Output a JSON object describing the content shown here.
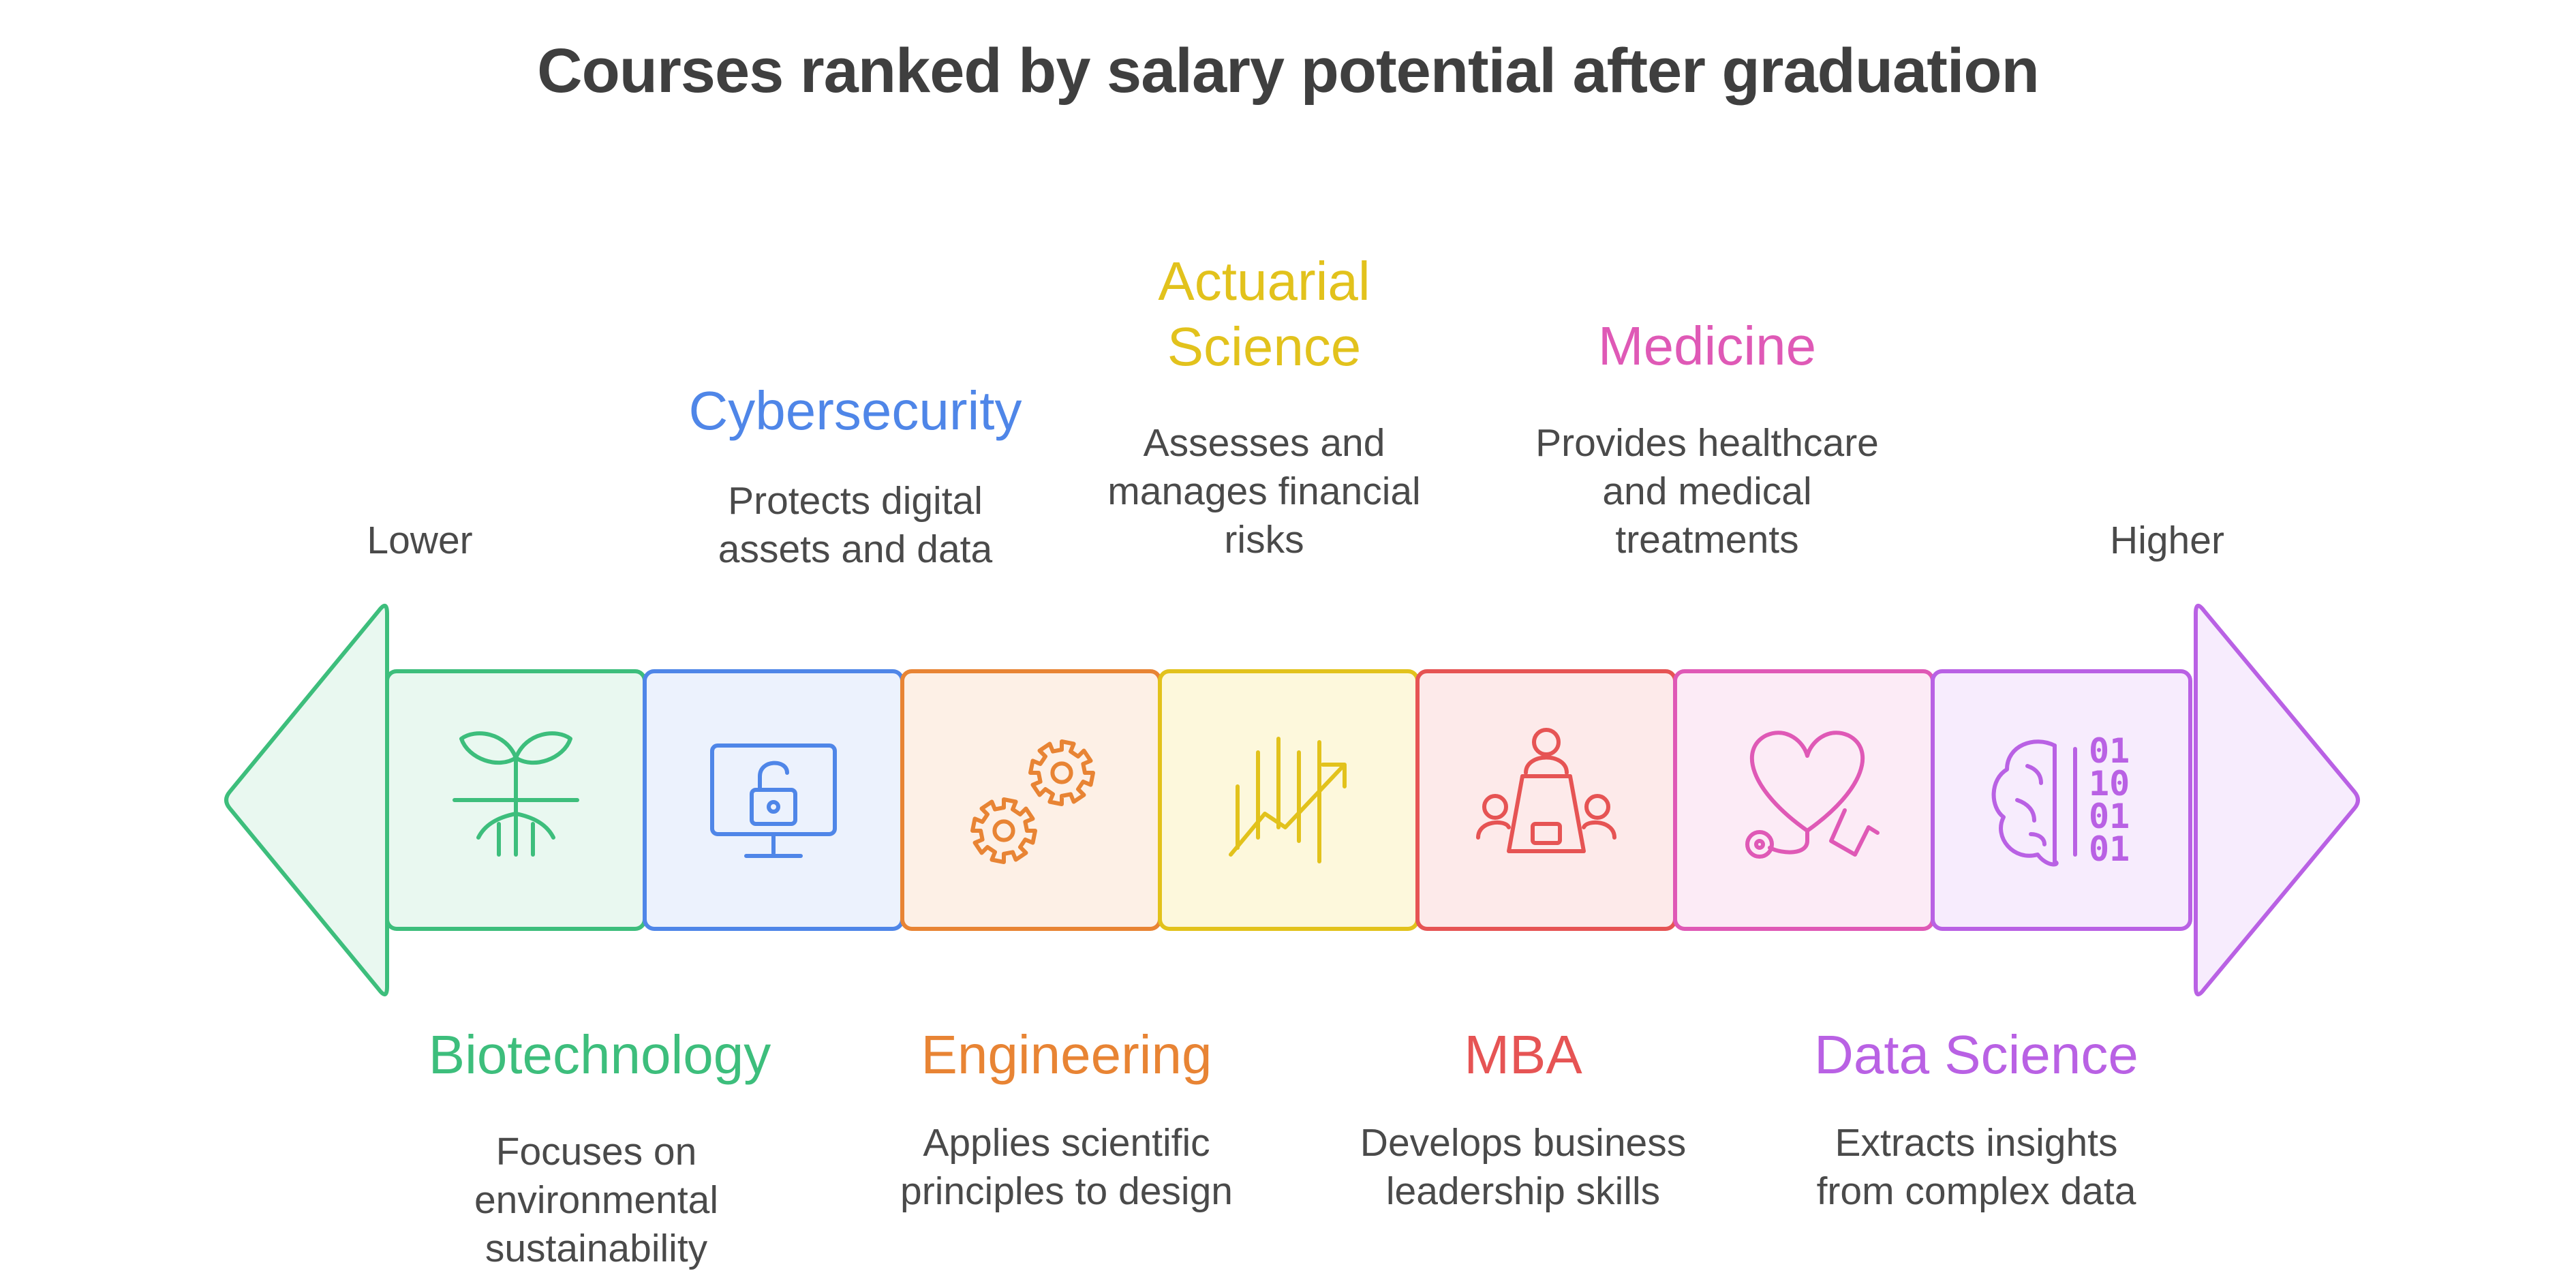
{
  "title": "Courses ranked by salary potential after graduation",
  "scale": {
    "low": "Lower",
    "high": "Higher"
  },
  "courses": [
    {
      "name": "Biotechnology",
      "desc": "Focuses on environmental sustainability",
      "color": "#3dbe7c",
      "fill": "#e9f8f0",
      "icon": "plant-icon"
    },
    {
      "name": "Cybersecurity",
      "desc": "Protects digital assets and data",
      "color": "#4f86e8",
      "fill": "#ecf2fd",
      "icon": "monitor-lock-icon"
    },
    {
      "name": "Engineering",
      "desc": "Applies scientific principles to design",
      "color": "#e88434",
      "fill": "#fdf0e6",
      "icon": "gears-icon"
    },
    {
      "name": "Actuarial Science",
      "desc": "Assesses and manages financial risks",
      "color": "#e2c21c",
      "fill": "#fdf8dc",
      "icon": "trend-chart-icon"
    },
    {
      "name": "MBA",
      "desc": "Develops business leadership skills",
      "color": "#e65454",
      "fill": "#fdeaea",
      "icon": "meeting-icon"
    },
    {
      "name": "Medicine",
      "desc": "Provides healthcare and medical treatments",
      "color": "#df59b6",
      "fill": "#fcebf6",
      "icon": "stethoscope-heart-icon"
    },
    {
      "name": "Data Science",
      "desc": "Extracts insights from complex data",
      "color": "#b961e4",
      "fill": "#f7ecfd",
      "icon": "brain-binary-icon"
    }
  ]
}
